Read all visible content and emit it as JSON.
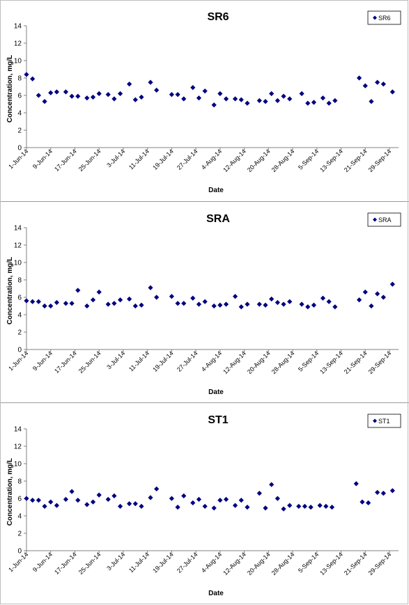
{
  "colors": {
    "marker": "#000080",
    "axis": "#808080",
    "text": "#000000"
  },
  "icons": {
    "legend_marker": "diamond-icon"
  },
  "chart_data": [
    {
      "type": "scatter",
      "title": "SR6",
      "xlabel": "Date",
      "ylabel": "Concentration, mg/L",
      "ylim": [
        0,
        14
      ],
      "yticks": [
        "0",
        "2",
        "4",
        "6",
        "8",
        "10",
        "12",
        "14"
      ],
      "xlim": [
        "2014-06-01",
        "2014-10-02"
      ],
      "xticks": [
        "1-Jun-14",
        "9-Jun-14",
        "17-Jun-14",
        "25-Jun-14",
        "3-Jul-14",
        "11-Jul-14",
        "19-Jul-14",
        "27-Jul-14",
        "4-Aug-14",
        "12-Aug-14",
        "20-Aug-14",
        "28-Aug-14",
        "5-Sep-14",
        "13-Sep-14",
        "21-Sep-14",
        "29-Sep-14"
      ],
      "legend": "top-right",
      "grid": false,
      "series": [
        {
          "name": "SR6",
          "points": [
            [
              "2014-06-01",
              8.4
            ],
            [
              "2014-06-03",
              7.9
            ],
            [
              "2014-06-05",
              6.0
            ],
            [
              "2014-06-07",
              5.3
            ],
            [
              "2014-06-09",
              6.3
            ],
            [
              "2014-06-11",
              6.4
            ],
            [
              "2014-06-14",
              6.4
            ],
            [
              "2014-06-16",
              5.9
            ],
            [
              "2014-06-18",
              5.9
            ],
            [
              "2014-06-21",
              5.7
            ],
            [
              "2014-06-23",
              5.8
            ],
            [
              "2014-06-25",
              6.2
            ],
            [
              "2014-06-28",
              6.1
            ],
            [
              "2014-06-30",
              5.6
            ],
            [
              "2014-07-02",
              6.2
            ],
            [
              "2014-07-05",
              7.3
            ],
            [
              "2014-07-07",
              5.5
            ],
            [
              "2014-07-09",
              5.8
            ],
            [
              "2014-07-12",
              7.5
            ],
            [
              "2014-07-14",
              6.6
            ],
            [
              "2014-07-19",
              6.1
            ],
            [
              "2014-07-21",
              6.1
            ],
            [
              "2014-07-23",
              5.6
            ],
            [
              "2014-07-26",
              6.9
            ],
            [
              "2014-07-28",
              5.7
            ],
            [
              "2014-07-30",
              6.5
            ],
            [
              "2014-08-02",
              4.9
            ],
            [
              "2014-08-04",
              6.2
            ],
            [
              "2014-08-06",
              5.6
            ],
            [
              "2014-08-09",
              5.6
            ],
            [
              "2014-08-11",
              5.5
            ],
            [
              "2014-08-13",
              5.1
            ],
            [
              "2014-08-17",
              5.4
            ],
            [
              "2014-08-19",
              5.3
            ],
            [
              "2014-08-21",
              6.2
            ],
            [
              "2014-08-23",
              5.4
            ],
            [
              "2014-08-25",
              5.9
            ],
            [
              "2014-08-27",
              5.6
            ],
            [
              "2014-08-31",
              6.2
            ],
            [
              "2014-09-02",
              5.1
            ],
            [
              "2014-09-04",
              5.2
            ],
            [
              "2014-09-07",
              5.7
            ],
            [
              "2014-09-09",
              5.1
            ],
            [
              "2014-09-11",
              5.4
            ],
            [
              "2014-09-19",
              8.0
            ],
            [
              "2014-09-21",
              7.1
            ],
            [
              "2014-09-23",
              5.3
            ],
            [
              "2014-09-25",
              7.5
            ],
            [
              "2014-09-27",
              7.3
            ],
            [
              "2014-09-30",
              6.4
            ]
          ]
        }
      ]
    },
    {
      "type": "scatter",
      "title": "SRA",
      "xlabel": "Date",
      "ylabel": "Concentration, mg/L",
      "ylim": [
        0,
        14
      ],
      "yticks": [
        "0",
        "2",
        "4",
        "6",
        "8",
        "10",
        "12",
        "14"
      ],
      "xlim": [
        "2014-06-01",
        "2014-10-02"
      ],
      "xticks": [
        "1-Jun-14",
        "9-Jun-14",
        "17-Jun-14",
        "25-Jun-14",
        "3-Jul-14",
        "11-Jul-14",
        "19-Jul-14",
        "27-Jul-14",
        "4-Aug-14",
        "12-Aug-14",
        "20-Aug-14",
        "28-Aug-14",
        "5-Sep-14",
        "13-Sep-14",
        "21-Sep-14",
        "29-Sep-14"
      ],
      "legend": "top-right",
      "grid": false,
      "series": [
        {
          "name": "SRA",
          "points": [
            [
              "2014-06-01",
              5.6
            ],
            [
              "2014-06-03",
              5.5
            ],
            [
              "2014-06-05",
              5.5
            ],
            [
              "2014-06-07",
              5.0
            ],
            [
              "2014-06-09",
              5.0
            ],
            [
              "2014-06-11",
              5.4
            ],
            [
              "2014-06-14",
              5.3
            ],
            [
              "2014-06-16",
              5.3
            ],
            [
              "2014-06-18",
              6.8
            ],
            [
              "2014-06-21",
              5.0
            ],
            [
              "2014-06-23",
              5.7
            ],
            [
              "2014-06-25",
              6.6
            ],
            [
              "2014-06-28",
              5.2
            ],
            [
              "2014-06-30",
              5.3
            ],
            [
              "2014-07-02",
              5.7
            ],
            [
              "2014-07-05",
              5.8
            ],
            [
              "2014-07-07",
              5.0
            ],
            [
              "2014-07-09",
              5.1
            ],
            [
              "2014-07-12",
              7.1
            ],
            [
              "2014-07-14",
              6.0
            ],
            [
              "2014-07-19",
              6.1
            ],
            [
              "2014-07-21",
              5.3
            ],
            [
              "2014-07-23",
              5.3
            ],
            [
              "2014-07-26",
              5.9
            ],
            [
              "2014-07-28",
              5.2
            ],
            [
              "2014-07-30",
              5.5
            ],
            [
              "2014-08-02",
              5.0
            ],
            [
              "2014-08-04",
              5.1
            ],
            [
              "2014-08-06",
              5.2
            ],
            [
              "2014-08-09",
              6.1
            ],
            [
              "2014-08-11",
              4.9
            ],
            [
              "2014-08-13",
              5.2
            ],
            [
              "2014-08-17",
              5.2
            ],
            [
              "2014-08-19",
              5.1
            ],
            [
              "2014-08-21",
              5.8
            ],
            [
              "2014-08-23",
              5.4
            ],
            [
              "2014-08-25",
              5.2
            ],
            [
              "2014-08-27",
              5.5
            ],
            [
              "2014-08-31",
              5.2
            ],
            [
              "2014-09-02",
              4.9
            ],
            [
              "2014-09-04",
              5.1
            ],
            [
              "2014-09-07",
              5.9
            ],
            [
              "2014-09-09",
              5.5
            ],
            [
              "2014-09-11",
              4.9
            ],
            [
              "2014-09-19",
              5.7
            ],
            [
              "2014-09-21",
              6.6
            ],
            [
              "2014-09-23",
              5.0
            ],
            [
              "2014-09-25",
              6.4
            ],
            [
              "2014-09-27",
              6.0
            ],
            [
              "2014-09-30",
              7.5
            ]
          ]
        }
      ]
    },
    {
      "type": "scatter",
      "title": "ST1",
      "xlabel": "Date",
      "ylabel": "Concentration, mg/L",
      "ylim": [
        0,
        14
      ],
      "yticks": [
        "0",
        "2",
        "4",
        "6",
        "8",
        "10",
        "12",
        "14"
      ],
      "xlim": [
        "2014-06-01",
        "2014-10-02"
      ],
      "xticks": [
        "1-Jun-14",
        "9-Jun-14",
        "17-Jun-14",
        "25-Jun-14",
        "3-Jul-14",
        "11-Jul-14",
        "19-Jul-14",
        "27-Jul-14",
        "4-Aug-14",
        "12-Aug-14",
        "20-Aug-14",
        "28-Aug-14",
        "5-Sep-14",
        "13-Sep-14",
        "21-Sep-14",
        "29-Sep-14"
      ],
      "legend": "top-right",
      "grid": false,
      "series": [
        {
          "name": "ST1",
          "points": [
            [
              "2014-06-01",
              6.0
            ],
            [
              "2014-06-03",
              5.8
            ],
            [
              "2014-06-05",
              5.8
            ],
            [
              "2014-06-07",
              5.1
            ],
            [
              "2014-06-09",
              5.6
            ],
            [
              "2014-06-11",
              5.2
            ],
            [
              "2014-06-14",
              5.9
            ],
            [
              "2014-06-16",
              6.8
            ],
            [
              "2014-06-18",
              5.8
            ],
            [
              "2014-06-21",
              5.3
            ],
            [
              "2014-06-23",
              5.6
            ],
            [
              "2014-06-25",
              6.4
            ],
            [
              "2014-06-28",
              5.9
            ],
            [
              "2014-06-30",
              6.3
            ],
            [
              "2014-07-02",
              5.1
            ],
            [
              "2014-07-05",
              5.4
            ],
            [
              "2014-07-07",
              5.4
            ],
            [
              "2014-07-09",
              5.1
            ],
            [
              "2014-07-12",
              6.1
            ],
            [
              "2014-07-14",
              7.1
            ],
            [
              "2014-07-19",
              6.0
            ],
            [
              "2014-07-21",
              5.0
            ],
            [
              "2014-07-23",
              6.3
            ],
            [
              "2014-07-26",
              5.5
            ],
            [
              "2014-07-28",
              5.9
            ],
            [
              "2014-07-30",
              5.1
            ],
            [
              "2014-08-02",
              4.9
            ],
            [
              "2014-08-04",
              5.8
            ],
            [
              "2014-08-06",
              5.9
            ],
            [
              "2014-08-09",
              5.2
            ],
            [
              "2014-08-11",
              5.8
            ],
            [
              "2014-08-13",
              5.0
            ],
            [
              "2014-08-17",
              6.6
            ],
            [
              "2014-08-19",
              4.9
            ],
            [
              "2014-08-21",
              7.6
            ],
            [
              "2014-08-23",
              6.0
            ],
            [
              "2014-08-25",
              4.8
            ],
            [
              "2014-08-27",
              5.2
            ],
            [
              "2014-08-30",
              5.1
            ],
            [
              "2014-09-01",
              5.1
            ],
            [
              "2014-09-03",
              5.0
            ],
            [
              "2014-09-06",
              5.2
            ],
            [
              "2014-09-08",
              5.1
            ],
            [
              "2014-09-10",
              5.0
            ],
            [
              "2014-09-18",
              7.7
            ],
            [
              "2014-09-20",
              5.6
            ],
            [
              "2014-09-22",
              5.5
            ],
            [
              "2014-09-25",
              6.7
            ],
            [
              "2014-09-27",
              6.6
            ],
            [
              "2014-09-30",
              6.9
            ]
          ]
        }
      ]
    }
  ]
}
